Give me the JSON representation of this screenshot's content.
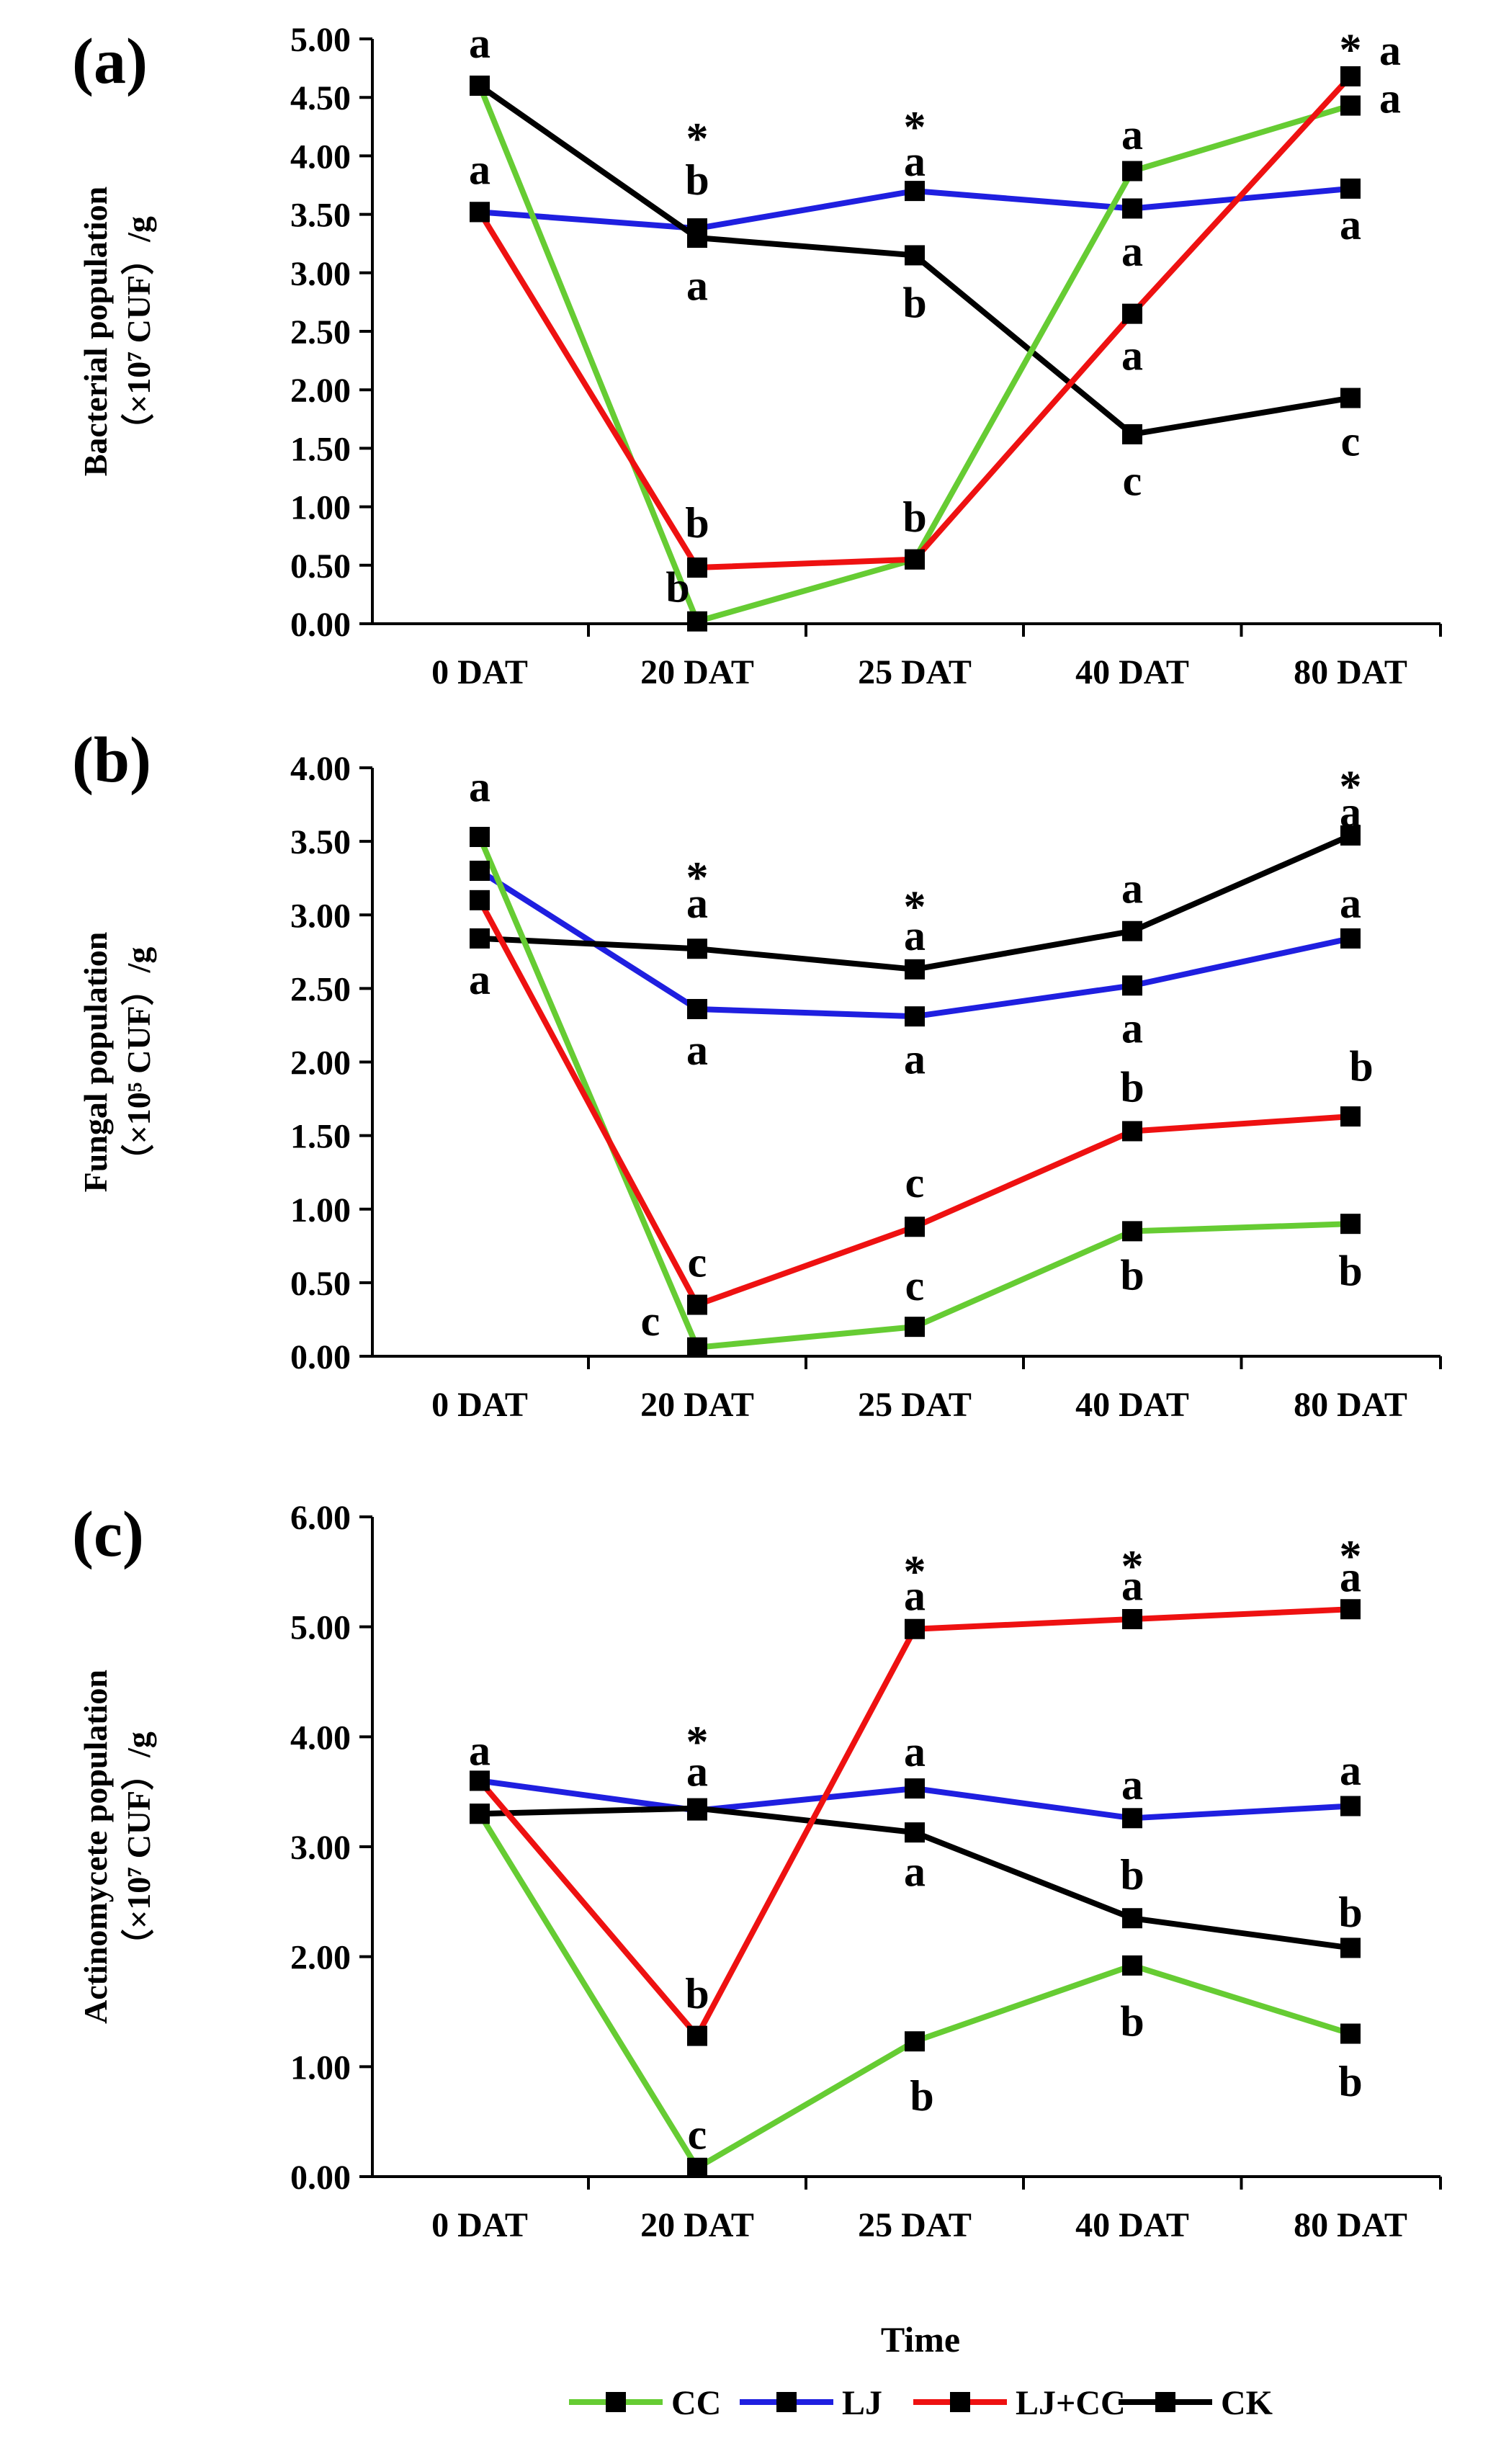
{
  "colors": {
    "CC": "#66cc33",
    "LJ": "#1f1fe0",
    "LJ+CC": "#ee1111",
    "CK": "#000000",
    "axis": "#000000"
  },
  "chart_data": [
    {
      "type": "line",
      "panel_label": "(a)",
      "ylabel_line1": "Bacterial population",
      "ylabel_line2": "（×10⁷ CUF）/g",
      "categories": [
        "0 DAT",
        "20 DAT",
        "25 DAT",
        "40 DAT",
        "80 DAT"
      ],
      "ylim": [
        0,
        5
      ],
      "yticks": [
        "0.00",
        "0.50",
        "1.00",
        "1.50",
        "2.00",
        "2.50",
        "3.00",
        "3.50",
        "4.00",
        "4.50",
        "5.00"
      ],
      "series": [
        {
          "name": "CC",
          "values": [
            4.6,
            0.02,
            0.55,
            3.87,
            4.43
          ]
        },
        {
          "name": "LJ",
          "values": [
            3.52,
            3.38,
            3.7,
            3.55,
            3.72
          ]
        },
        {
          "name": "LJ+CC",
          "values": [
            3.52,
            0.48,
            0.55,
            2.65,
            4.68
          ]
        },
        {
          "name": "CK",
          "values": [
            4.6,
            3.3,
            3.15,
            1.62,
            1.93
          ]
        }
      ],
      "annotations": [
        {
          "cat": 0,
          "y": 4.95,
          "text": "a"
        },
        {
          "cat": 0,
          "y": 3.87,
          "text": "a"
        },
        {
          "cat": 1,
          "y": 4.23,
          "text": "*"
        },
        {
          "cat": 1,
          "y": 3.78,
          "text": "b"
        },
        {
          "cat": 1,
          "y": 2.88,
          "text": "a"
        },
        {
          "cat": 1,
          "y": 0.85,
          "text": "b"
        },
        {
          "cat": 1,
          "y": 0.3,
          "dx": -27,
          "text": "b"
        },
        {
          "cat": 2,
          "y": 4.33,
          "text": "*"
        },
        {
          "cat": 2,
          "y": 3.94,
          "text": "a"
        },
        {
          "cat": 2,
          "y": 2.73,
          "text": "b"
        },
        {
          "cat": 2,
          "y": 0.9,
          "text": "b"
        },
        {
          "cat": 3,
          "y": 4.17,
          "text": "a"
        },
        {
          "cat": 3,
          "y": 3.17,
          "text": "a"
        },
        {
          "cat": 3,
          "y": 2.28,
          "text": "a"
        },
        {
          "cat": 3,
          "y": 1.21,
          "text": "c"
        },
        {
          "cat": 4,
          "y": 4.99,
          "text": "*"
        },
        {
          "cat": 4,
          "dx": 55,
          "y": 4.89,
          "text": "a"
        },
        {
          "cat": 4,
          "dx": 55,
          "y": 4.48,
          "text": "a"
        },
        {
          "cat": 4,
          "y": 3.4,
          "text": "a"
        },
        {
          "cat": 4,
          "y": 1.55,
          "text": "c"
        }
      ]
    },
    {
      "type": "line",
      "panel_label": "(b)",
      "ylabel_line1": "Fungal population",
      "ylabel_line2": "（×10⁵ CUF）/g",
      "categories": [
        "0 DAT",
        "20 DAT",
        "25 DAT",
        "40 DAT",
        "80 DAT"
      ],
      "ylim": [
        0,
        4
      ],
      "yticks": [
        "0.00",
        "0.50",
        "1.00",
        "1.50",
        "2.00",
        "2.50",
        "3.00",
        "3.50",
        "4.00"
      ],
      "series": [
        {
          "name": "CC",
          "values": [
            3.53,
            0.06,
            0.2,
            0.85,
            0.9
          ]
        },
        {
          "name": "LJ",
          "values": [
            3.3,
            2.36,
            2.31,
            2.52,
            2.84
          ]
        },
        {
          "name": "LJ+CC",
          "values": [
            3.1,
            0.35,
            0.88,
            1.53,
            1.63
          ]
        },
        {
          "name": "CK",
          "values": [
            2.84,
            2.77,
            2.63,
            2.89,
            3.54
          ]
        }
      ],
      "annotations": [
        {
          "cat": 0,
          "y": 3.86,
          "text": "a"
        },
        {
          "cat": 0,
          "y": 2.55,
          "text": "a"
        },
        {
          "cat": 1,
          "y": 3.32,
          "text": "*"
        },
        {
          "cat": 1,
          "y": 3.07,
          "text": "a"
        },
        {
          "cat": 1,
          "y": 2.07,
          "text": "a"
        },
        {
          "cat": 1,
          "y": 0.63,
          "text": "c"
        },
        {
          "cat": 1,
          "dx": -65,
          "y": 0.23,
          "text": "c"
        },
        {
          "cat": 2,
          "y": 3.12,
          "text": "*"
        },
        {
          "cat": 2,
          "y": 2.85,
          "text": "a"
        },
        {
          "cat": 2,
          "y": 2.01,
          "text": "a"
        },
        {
          "cat": 2,
          "y": 1.17,
          "text": "c"
        },
        {
          "cat": 2,
          "y": 0.47,
          "text": "c"
        },
        {
          "cat": 3,
          "y": 3.17,
          "text": "a"
        },
        {
          "cat": 3,
          "y": 2.22,
          "text": "a"
        },
        {
          "cat": 3,
          "y": 1.82,
          "text": "b"
        },
        {
          "cat": 3,
          "y": 0.54,
          "text": "b"
        },
        {
          "cat": 4,
          "y": 3.94,
          "text": "*"
        },
        {
          "cat": 4,
          "y": 3.69,
          "text": "a"
        },
        {
          "cat": 4,
          "y": 3.07,
          "text": "a"
        },
        {
          "cat": 4,
          "dx": 15,
          "y": 1.96,
          "text": "b"
        },
        {
          "cat": 4,
          "y": 0.57,
          "text": "b"
        }
      ]
    },
    {
      "type": "line",
      "panel_label": "(c)",
      "ylabel_line1": "Actinomycete population",
      "ylabel_line2": "（×10⁷ CUF）/g",
      "categories": [
        "0 DAT",
        "20 DAT",
        "25 DAT",
        "40 DAT",
        "80 DAT"
      ],
      "ylim": [
        0,
        6
      ],
      "yticks": [
        "0.00",
        "1.00",
        "2.00",
        "3.00",
        "4.00",
        "5.00",
        "6.00"
      ],
      "series": [
        {
          "name": "CC",
          "values": [
            3.3,
            0.08,
            1.23,
            1.92,
            1.3
          ]
        },
        {
          "name": "LJ",
          "values": [
            3.6,
            3.33,
            3.53,
            3.26,
            3.37
          ]
        },
        {
          "name": "LJ+CC",
          "values": [
            3.6,
            1.28,
            4.98,
            5.07,
            5.16
          ]
        },
        {
          "name": "CK",
          "values": [
            3.3,
            3.35,
            3.13,
            2.35,
            2.08
          ]
        }
      ],
      "annotations": [
        {
          "cat": 0,
          "y": 3.86,
          "text": "a"
        },
        {
          "cat": 1,
          "y": 4.04,
          "text": "*"
        },
        {
          "cat": 1,
          "y": 3.67,
          "text": "a"
        },
        {
          "cat": 1,
          "y": 1.65,
          "text": "b"
        },
        {
          "cat": 1,
          "y": 0.37,
          "text": "c"
        },
        {
          "cat": 2,
          "y": 5.59,
          "text": "*"
        },
        {
          "cat": 2,
          "y": 5.27,
          "text": "a"
        },
        {
          "cat": 2,
          "y": 3.85,
          "text": "a"
        },
        {
          "cat": 2,
          "y": 2.76,
          "text": "a"
        },
        {
          "cat": 2,
          "dx": 10,
          "y": 0.72,
          "text": "b"
        },
        {
          "cat": 3,
          "y": 5.64,
          "text": "*"
        },
        {
          "cat": 3,
          "y": 5.36,
          "text": "a"
        },
        {
          "cat": 3,
          "y": 3.55,
          "text": "a"
        },
        {
          "cat": 3,
          "y": 2.73,
          "text": "b"
        },
        {
          "cat": 3,
          "y": 1.4,
          "text": "b"
        },
        {
          "cat": 4,
          "y": 5.73,
          "text": "*"
        },
        {
          "cat": 4,
          "y": 5.44,
          "text": "a"
        },
        {
          "cat": 4,
          "y": 3.68,
          "text": "a"
        },
        {
          "cat": 4,
          "y": 2.39,
          "text": "b"
        },
        {
          "cat": 4,
          "y": 0.85,
          "text": "b"
        }
      ]
    }
  ],
  "xlabel": "Time",
  "legend": [
    {
      "name": "CC",
      "color": "#66cc33"
    },
    {
      "name": "LJ",
      "color": "#1f1fe0"
    },
    {
      "name": "LJ+CC",
      "color": "#ee1111"
    },
    {
      "name": "CK",
      "color": "#000000"
    }
  ]
}
